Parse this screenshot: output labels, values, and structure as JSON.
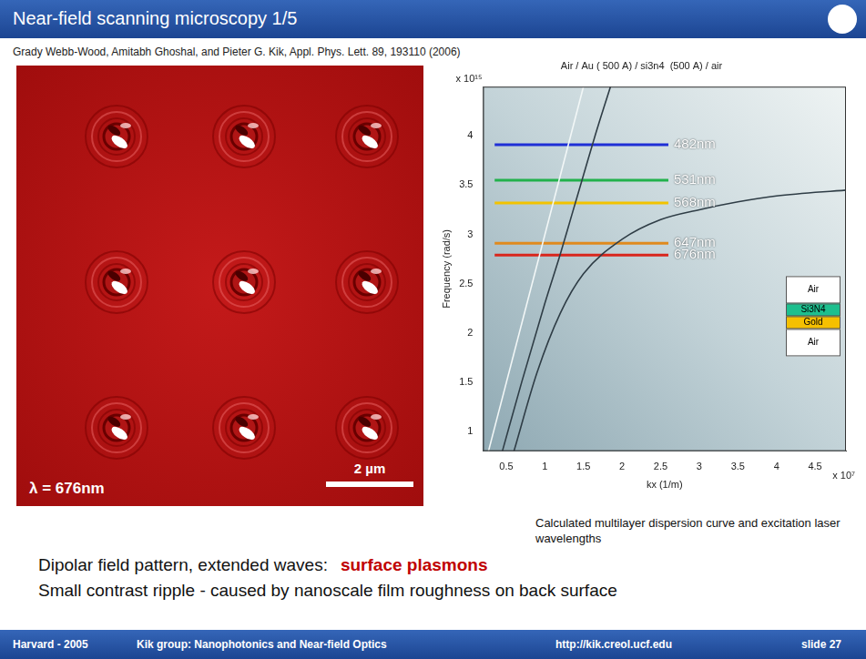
{
  "header": {
    "title": "Near-field scanning microscopy 1/5"
  },
  "citation": "Grady Webb-Wood, Amitabh Ghoshal, and Pieter G. Kik, Appl. Phys. Lett. 89, 193110 (2006)",
  "micrograph": {
    "wavelength_label": "λ = 676nm",
    "scale_bar_label": "2 µm"
  },
  "chart_data": {
    "type": "line",
    "title": "Air / Au ( 500 A) / si3n4  (500 A) / air",
    "x_label": "kx (1/m)",
    "y_label": "Frequency (rad/s)",
    "annotations": [
      {
        "text": "x 10¹⁵",
        "axis": "y"
      },
      {
        "text": "x 10⁷",
        "axis": "x"
      }
    ],
    "xlim": [
      0.2,
      4.9
    ],
    "xticks": [
      0.5,
      1,
      1.5,
      2,
      2.5,
      3,
      3.5,
      4,
      4.5
    ],
    "ylim": [
      0.8,
      4.5
    ],
    "yticks": [
      1,
      1.5,
      2,
      2.5,
      3,
      3.5,
      4
    ],
    "grid": false,
    "series": [
      {
        "color": "#f2f7f7",
        "line_style": "solid",
        "x": [
          0.27,
          1.5
        ],
        "values": [
          0.8,
          4.5
        ]
      },
      {
        "color": "#2f3d46",
        "line_style": "solid",
        "x": [
          0.45,
          0.7,
          1.0,
          1.2,
          1.35,
          1.5,
          1.65,
          1.85
        ],
        "values": [
          0.8,
          1.5,
          2.3,
          2.8,
          3.2,
          3.6,
          4.0,
          4.5
        ]
      },
      {
        "color": "#2f3d46",
        "line_style": "solid",
        "x": [
          0.6,
          0.9,
          1.2,
          1.5,
          2.0,
          2.5,
          3.0,
          3.5,
          4.0,
          4.9
        ],
        "values": [
          0.8,
          1.6,
          2.2,
          2.6,
          2.95,
          3.15,
          3.25,
          3.33,
          3.39,
          3.45
        ]
      },
      {
        "name": "482nm",
        "color": "#1f2fd6",
        "line_style": "solid",
        "x": [
          0.35,
          2.6
        ],
        "values": [
          3.91,
          3.91
        ]
      },
      {
        "name": "531nm",
        "color": "#22b14c",
        "line_style": "solid",
        "x": [
          0.35,
          2.6
        ],
        "values": [
          3.55,
          3.55
        ]
      },
      {
        "name": "568nm",
        "color": "#f2c300",
        "line_style": "solid",
        "x": [
          0.35,
          2.6
        ],
        "values": [
          3.32,
          3.32
        ]
      },
      {
        "name": "647nm",
        "color": "#e08a1e",
        "line_style": "solid",
        "x": [
          0.35,
          2.6
        ],
        "values": [
          2.91,
          2.91
        ]
      },
      {
        "name": "676nm",
        "color": "#d9261c",
        "line_style": "solid",
        "x": [
          0.35,
          2.6
        ],
        "values": [
          2.79,
          2.79
        ]
      }
    ],
    "inset": {
      "layers": [
        "Air",
        "Si3N4",
        "Gold",
        "Air"
      ],
      "colors": [
        "#ffffff",
        "#1dbf8e",
        "#f5c000",
        "#ffffff"
      ]
    }
  },
  "caption": "Calculated multilayer dispersion curve and excitation laser wavelengths",
  "notes": [
    {
      "text": "Dipolar field pattern, extended waves:",
      "highlight": "surface plasmons"
    },
    {
      "text": "Small contrast ripple - caused by nanoscale film roughness on back surface"
    }
  ],
  "footer": [
    "Harvard - 2005",
    "Kik group: Nanophotonics and Near-field Optics",
    "http://kik.creol.ucf.edu",
    "slide 27"
  ]
}
